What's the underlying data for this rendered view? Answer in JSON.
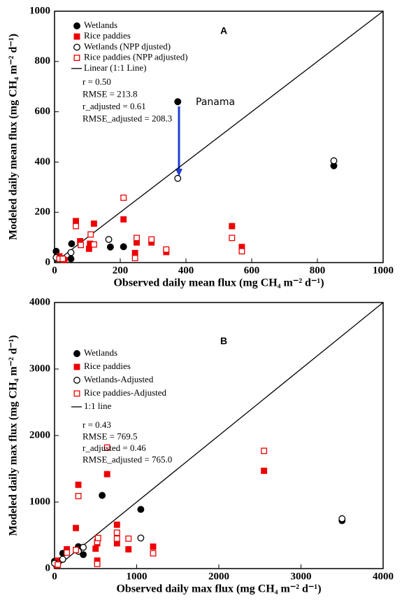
{
  "chart_data": [
    {
      "type": "scatter",
      "panel_label": "A",
      "x_label": "Observed daily mean flux (mg CH₄ m⁻² d⁻¹)",
      "y_label": "Modeled daily mean flux (mg CH₄ m⁻² d⁻¹)",
      "xlim": [
        0,
        1000
      ],
      "ylim": [
        0,
        1000
      ],
      "xticks": [
        0,
        200,
        400,
        600,
        800,
        1000
      ],
      "yticks": [
        0,
        200,
        400,
        600,
        800,
        1000
      ],
      "line_label": "Linear (1:1 Line)",
      "annotations": [
        "r = 0.50",
        "RMSE = 213.8",
        "r_adjusted = 0.61",
        "RMSE_adjusted = 208.3"
      ],
      "point_label": "Panama",
      "series": [
        {
          "name": "Wetlands",
          "color": "#000000",
          "marker": "circle",
          "filled": true,
          "x": [
            5,
            50,
            52,
            170,
            210,
            375,
            850
          ],
          "values": [
            45,
            15,
            75,
            62,
            63,
            640,
            385
          ]
        },
        {
          "name": "Rice paddies",
          "color": "#ee0000",
          "marker": "square",
          "filled": true,
          "x": [
            15,
            30,
            65,
            78,
            105,
            108,
            120,
            210,
            245,
            250,
            295,
            340,
            540,
            570
          ],
          "values": [
            25,
            10,
            165,
            85,
            55,
            75,
            155,
            172,
            38,
            80,
            80,
            42,
            145,
            62
          ]
        },
        {
          "name": "Wetlands (NPP djusted)",
          "color": "#000000",
          "marker": "circle",
          "filled": false,
          "x": [
            5,
            50,
            165,
            375,
            850
          ],
          "values": [
            20,
            40,
            92,
            335,
            405
          ]
        },
        {
          "name": "Rice paddies (NPP adjusted)",
          "color": "#ee0000",
          "marker": "square",
          "filled": false,
          "x": [
            15,
            25,
            65,
            80,
            110,
            120,
            210,
            245,
            250,
            295,
            340,
            540,
            570
          ],
          "values": [
            15,
            15,
            145,
            70,
            112,
            72,
            258,
            18,
            98,
            92,
            52,
            98,
            45
          ]
        }
      ]
    },
    {
      "type": "scatter",
      "panel_label": "B",
      "x_label": "Observed daily max flux (mg CH₄ m⁻² d⁻¹)",
      "y_label": "Modeled daily max flux (mg CH₄ m⁻² d⁻¹)",
      "xlim": [
        0,
        4000
      ],
      "ylim": [
        0,
        4000
      ],
      "xticks": [
        0,
        1000,
        2000,
        3000,
        4000
      ],
      "yticks": [
        0,
        1000,
        2000,
        3000,
        4000
      ],
      "line_label": "1:1 line",
      "annotations": [
        "r = 0.43",
        "RMSE = 769.5",
        "r_adjusted = 0.46",
        "RMSE_adjusted = 765.0"
      ],
      "series": [
        {
          "name": "Wetlands",
          "color": "#000000",
          "marker": "circle",
          "filled": true,
          "x": [
            0,
            100,
            290,
            350,
            580,
            1050,
            3500
          ],
          "values": [
            110,
            230,
            330,
            210,
            1100,
            890,
            720
          ]
        },
        {
          "name": "Rice paddies",
          "color": "#ee0000",
          "marker": "square",
          "filled": true,
          "x": [
            25,
            40,
            150,
            260,
            290,
            500,
            520,
            520,
            640,
            760,
            760,
            900,
            1200,
            2550
          ],
          "values": [
            50,
            120,
            290,
            610,
            1260,
            300,
            120,
            380,
            1420,
            660,
            380,
            290,
            330,
            1470
          ]
        },
        {
          "name": "Wetlands-Adjusted",
          "color": "#000000",
          "marker": "circle",
          "filled": false,
          "x": [
            0,
            100,
            290,
            350,
            1050,
            3500
          ],
          "values": [
            80,
            140,
            260,
            320,
            460,
            750
          ]
        },
        {
          "name": "Rice paddies-Adjusted",
          "color": "#ee0000",
          "marker": "square",
          "filled": false,
          "x": [
            40,
            150,
            260,
            290,
            520,
            530,
            520,
            640,
            760,
            760,
            900,
            1200,
            2550
          ],
          "values": [
            60,
            240,
            280,
            1090,
            400,
            460,
            70,
            1820,
            540,
            450,
            450,
            230,
            1770
          ]
        }
      ]
    }
  ]
}
